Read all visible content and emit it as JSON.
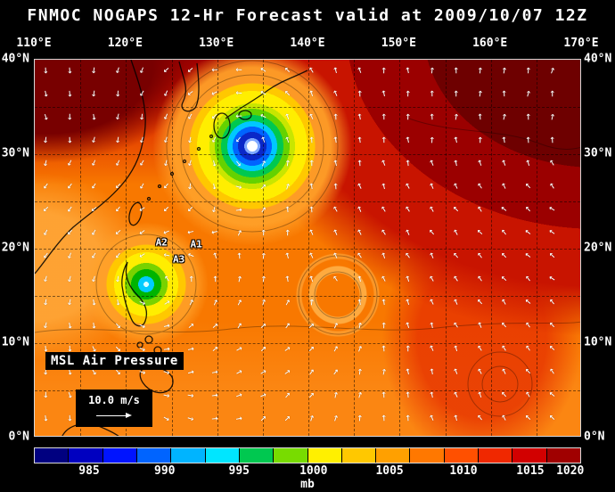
{
  "header": {
    "title": "FNMOC NOGAPS 12-Hr Forecast valid at 2009/10/07 12Z"
  },
  "map": {
    "field_label": "MSL Air Pressure",
    "wind_legend_label": "10.0 m/s",
    "axes": {
      "lon_ticks": [
        {
          "label": "110°E",
          "lon": 110
        },
        {
          "label": "120°E",
          "lon": 120
        },
        {
          "label": "130°E",
          "lon": 130
        },
        {
          "label": "140°E",
          "lon": 140
        },
        {
          "label": "150°E",
          "lon": 150
        },
        {
          "label": "160°E",
          "lon": 160
        },
        {
          "label": "170°E",
          "lon": 170
        }
      ],
      "lat_ticks": [
        {
          "label": "40°N",
          "lat": 40
        },
        {
          "label": "30°N",
          "lat": 30
        },
        {
          "label": "20°N",
          "lat": 20
        },
        {
          "label": "10°N",
          "lat": 10
        },
        {
          "label": "0°N",
          "lat": 0
        }
      ],
      "lon_range": [
        110,
        170
      ],
      "lat_range": [
        0,
        40
      ],
      "grid_step_deg": 5
    },
    "cyclones": [
      {
        "name": "typhoon-south-of-japan",
        "lon": 133.9,
        "lat": 30.8
      },
      {
        "name": "tropical-cyclone-east-of-luzon",
        "lon": 122.2,
        "lat": 16.2
      },
      {
        "name": "weak-low-philippine-sea",
        "lon": 143.2,
        "lat": 15.1
      }
    ],
    "storm_track_labels": [
      {
        "text": "A1",
        "lon": 127.7,
        "lat": 20.5
      },
      {
        "text": "A2",
        "lon": 123.9,
        "lat": 20.7
      },
      {
        "text": "A3",
        "lon": 125.8,
        "lat": 18.9
      }
    ],
    "wind_arrow_color": "#ffffff"
  },
  "colorbar": {
    "units_label": "mb",
    "ticks": [
      {
        "label": "985",
        "pos_pct": 10.1
      },
      {
        "label": "990",
        "pos_pct": 23.9
      },
      {
        "label": "995",
        "pos_pct": 37.5
      },
      {
        "label": "1000",
        "pos_pct": 51.1
      },
      {
        "label": "1005",
        "pos_pct": 65.0
      },
      {
        "label": "1010",
        "pos_pct": 78.5
      },
      {
        "label": "1015",
        "pos_pct": 90.7
      },
      {
        "label": "1020",
        "pos_pct": 98.0
      }
    ],
    "cell_colors": [
      "#000080",
      "#0000c0",
      "#0014ff",
      "#0064ff",
      "#00b4ff",
      "#00e6ff",
      "#00c850",
      "#78dc00",
      "#fff000",
      "#ffc800",
      "#ffa000",
      "#ff7800",
      "#ff5000",
      "#f02800",
      "#d20000",
      "#a00000"
    ]
  },
  "colors": {
    "background": "#000000",
    "text": "#ffffff",
    "field_base": "#f87800"
  }
}
